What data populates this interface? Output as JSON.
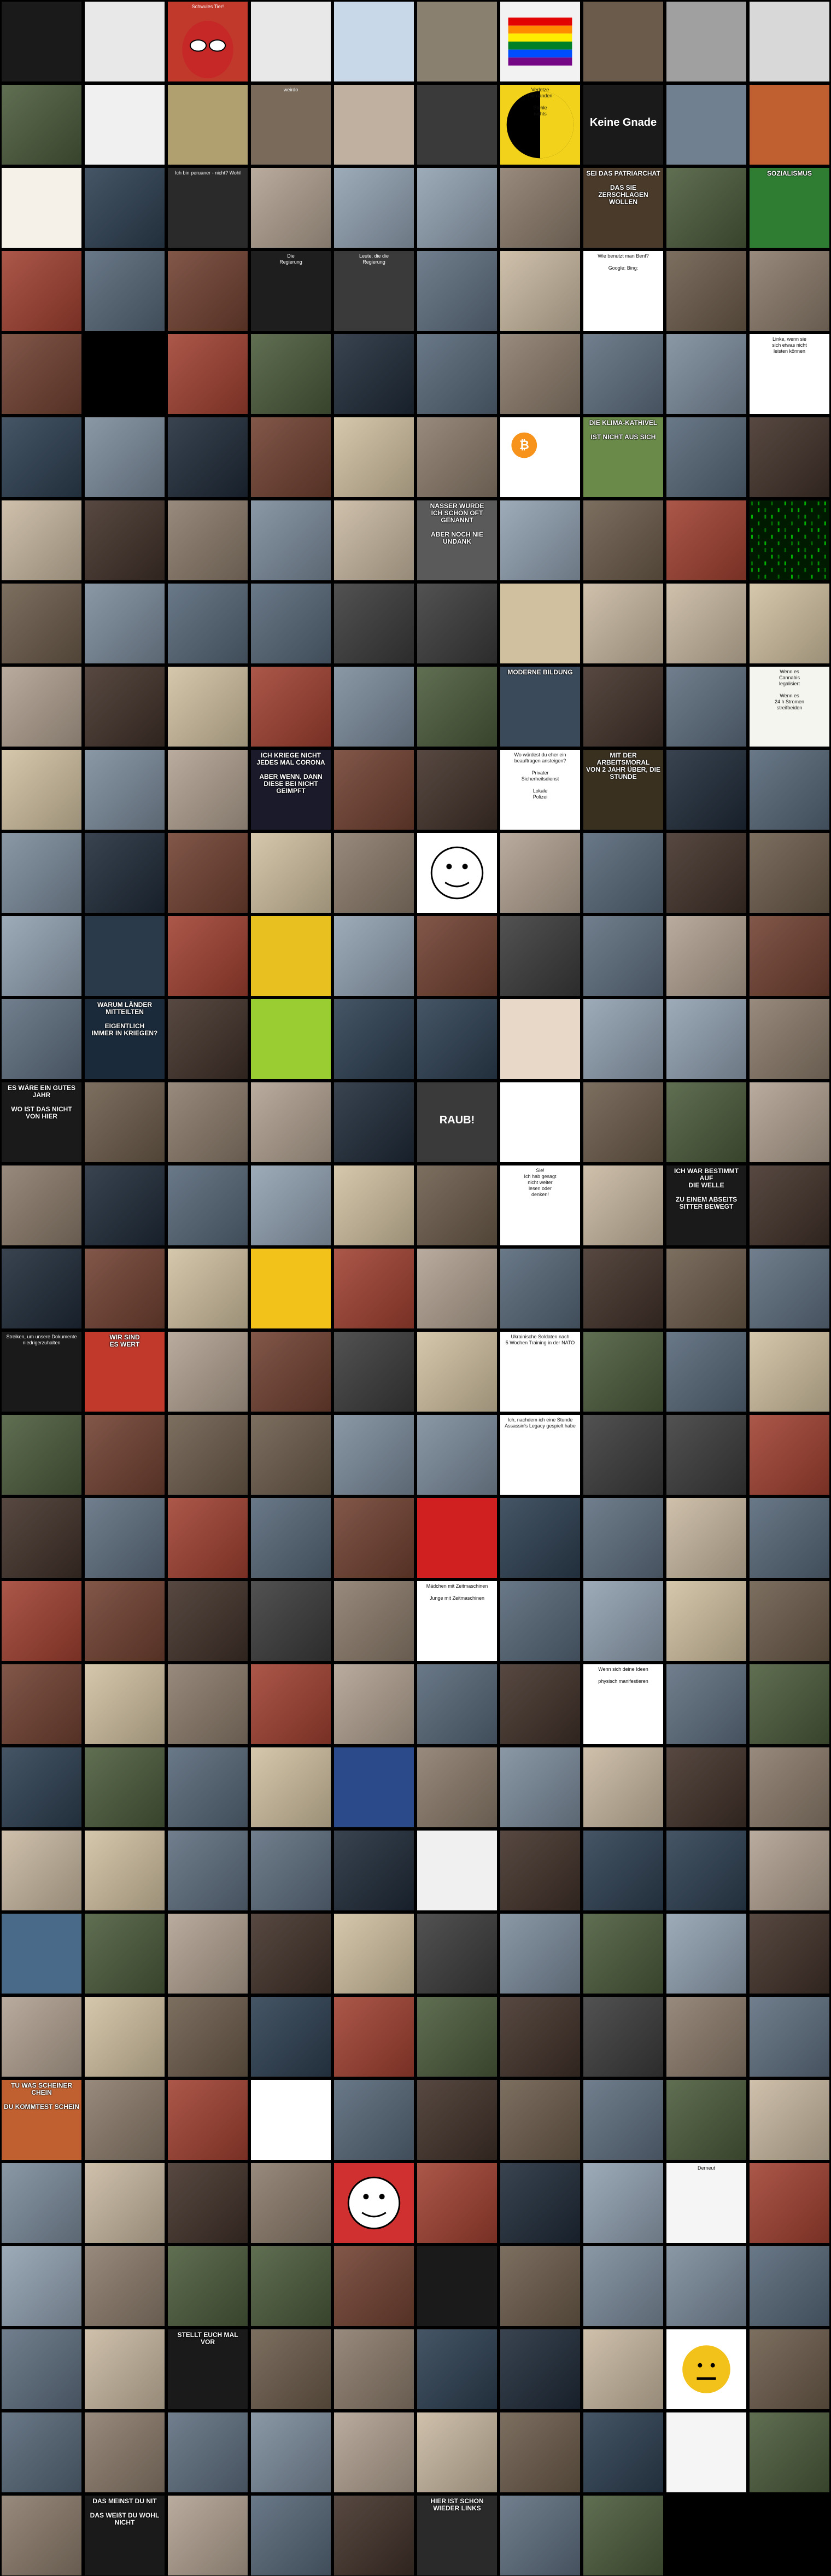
{
  "palette": [
    "#3a3a3a",
    "#6b5b4a",
    "#8a7a6a",
    "#2c3e50",
    "#5d6d7e",
    "#a04030",
    "#7a8a9a",
    "#4a5a3a",
    "#b0a090",
    "#1e2a38",
    "#c8b8a0",
    "#556677",
    "#704030",
    "#90a0b0",
    "#403028",
    "#d0c0a0"
  ],
  "accents": {
    "flag": "#e21b1b",
    "rainbow": [
      "#e40303",
      "#ff8c00",
      "#ffed00",
      "#008026",
      "#004dff",
      "#750787"
    ],
    "yellow": "#f2d21b",
    "bitcoin": "#f7931a",
    "matrix": "#00c000",
    "pink": "#ff2a8a"
  },
  "tiles": [
    {
      "id": "r0c0",
      "text": "",
      "bg": "#1a1a1a",
      "dark": true
    },
    {
      "id": "r0c1",
      "text": "",
      "bg": "#e8e8e8",
      "dark": false
    },
    {
      "id": "r0c2",
      "text": "Schwules Tier!",
      "bg": "#c0392b",
      "dark": true,
      "icon": "spiderman"
    },
    {
      "id": "r0c3",
      "text": "",
      "bg": "#e8e8e8",
      "dark": false
    },
    {
      "id": "r0c4",
      "text": "",
      "bg": "#c8d8e8",
      "dark": false
    },
    {
      "id": "r0c5",
      "text": "",
      "bg": "#8a8070",
      "dark": true
    },
    {
      "id": "r0c6",
      "text": "",
      "bg": "#f2f2f2",
      "dark": false,
      "icon": "rainbow-flag"
    },
    {
      "id": "r0c7",
      "text": "",
      "bg": "#6b5b4a",
      "dark": true
    },
    {
      "id": "r0c8",
      "text": "",
      "bg": "#a0a0a0",
      "dark": true
    },
    {
      "id": "r0c9",
      "text": "",
      "bg": "#d8d8d8",
      "dark": false
    },
    {
      "id": "r1c1",
      "text": "",
      "bg": "#f0f0f0",
      "dark": false
    },
    {
      "id": "r1c2",
      "text": "",
      "bg": "#b0a070",
      "dark": true
    },
    {
      "id": "r1c3",
      "text": "weirdo",
      "bg": "#7a6a5a",
      "dark": true
    },
    {
      "id": "r1c4",
      "text": "",
      "bg": "#c0b0a0",
      "dark": true
    },
    {
      "id": "r1c5",
      "text": "",
      "bg": "#3a3a3a",
      "dark": true
    },
    {
      "id": "r1c6",
      "text": "Verletze\nniemanden\n\nStehle\nnichts",
      "bg": "#f2d21b",
      "dark": false,
      "icon": "yinyang"
    },
    {
      "id": "r1c7",
      "text": "Keine Gnade",
      "bg": "#1a1a1a",
      "dark": true,
      "big": true
    },
    {
      "id": "r1c8",
      "text": "",
      "bg": "#708090",
      "dark": true
    },
    {
      "id": "r1c9",
      "text": "",
      "bg": "#c06030",
      "dark": true
    },
    {
      "id": "r2c0",
      "text": "",
      "bg": "#f5f0e8",
      "dark": false
    },
    {
      "id": "r2c2",
      "text": "Ich bin peruaner - nicht? Wohl",
      "bg": "#2a2a2a",
      "dark": true
    },
    {
      "id": "r2c7",
      "text": "SEI DAS PATRIARCHAT\n\nDAS SIE\nZERSCHLAGEN WOLLEN",
      "bg": "#4a3a2a",
      "dark": true,
      "meme": true
    },
    {
      "id": "r2c9",
      "text": "SOZIALISMUS",
      "bg": "#2e7d32",
      "dark": true,
      "meme": true
    },
    {
      "id": "r3c3",
      "text": "Die\nRegierung",
      "bg": "#1e1e1e",
      "dark": true
    },
    {
      "id": "r3c4",
      "text": "Leute, die die\nRegierung",
      "bg": "#3a3a3a",
      "dark": true
    },
    {
      "id": "r3c7",
      "text": "Wie benutzt man Benf?\n\nGoogle:      Bing:",
      "bg": "#ffffff",
      "dark": false
    },
    {
      "id": "r4c1",
      "text": "",
      "bg": "#000000",
      "dark": true
    },
    {
      "id": "r4c9",
      "text": "Linke, wenn sie\nsich etwas nicht\nleisten können",
      "bg": "#ffffff",
      "dark": false
    },
    {
      "id": "r5c6",
      "text": "",
      "bg": "#ffffff",
      "dark": false,
      "icon": "bitcoin"
    },
    {
      "id": "r5c7",
      "text": "DIE KLIMA-KATHIVEL\n\nIST NICHT AUS SICH",
      "bg": "#6a8a4a",
      "dark": true,
      "meme": true
    },
    {
      "id": "r6c5",
      "text": "NASSER WURDE\nICH SCHON OFT GENANNT\n\nABER NOCH NIE UNDANK",
      "bg": "#5a5a5a",
      "dark": true,
      "meme": true
    },
    {
      "id": "r6c9",
      "text": "",
      "bg": "#001a00",
      "dark": true,
      "icon": "matrix"
    },
    {
      "id": "r7c6",
      "text": "",
      "bg": "#d0c0a0",
      "dark": false
    },
    {
      "id": "r8c6",
      "text": "MODERNE BILDUNG",
      "bg": "#3a4a5a",
      "dark": true,
      "meme": true
    },
    {
      "id": "r8c9",
      "text": "Wenn es\nCannabis\nlegalisiert\n\nWenn es\n24 h Stromen\nstreifbeiden",
      "bg": "#f5f5f0",
      "dark": false
    },
    {
      "id": "r9c3",
      "text": "ICH KRIEGE NICHT\nJEDES MAL CORONA\n\nABER WENN, DANN\nDIESE BEI NICHT GEIMPFT",
      "bg": "#1a1a2a",
      "dark": true,
      "meme": true
    },
    {
      "id": "r9c6",
      "text": "Wo würdest du eher ein\nbeauftragen ansteigen?\n\nPrivater\nSicherheitsdienst\n\nLokale\nPolizei",
      "bg": "#ffffff",
      "dark": false
    },
    {
      "id": "r9c7",
      "text": "MIT DER ARBEITSMORAL\nVON 2 JAHR ÜBER, DIE STUNDE",
      "bg": "#3a3020",
      "dark": true,
      "meme": true
    },
    {
      "id": "r10c5",
      "text": "",
      "bg": "#ffffff",
      "dark": false,
      "icon": "rage-face"
    },
    {
      "id": "r11c1",
      "text": "",
      "bg": "#2a3a4a",
      "dark": true
    },
    {
      "id": "r11c3",
      "text": "",
      "bg": "#e8c020",
      "dark": false
    },
    {
      "id": "r12c1",
      "text": "WARUM LÄNDER MITTEILTEN\n\nEIGENTLICH\nIMMER IN KRIEGEN?",
      "bg": "#1a2a3a",
      "dark": true,
      "meme": true
    },
    {
      "id": "r12c3",
      "text": "",
      "bg": "#9acd32",
      "dark": false
    },
    {
      "id": "r12c6",
      "text": "",
      "bg": "#e8d8c8",
      "dark": false
    },
    {
      "id": "r13c0",
      "text": "ES WÄRE EIN GUTES JAHR\n\nWO IST DAS NICHT\nVON HIER",
      "bg": "#1a1a1a",
      "dark": true,
      "meme": true
    },
    {
      "id": "r13c5",
      "text": "RAUB!",
      "bg": "#3a3a3a",
      "dark": true,
      "big": true
    },
    {
      "id": "r13c6",
      "text": "",
      "bg": "#ffffff",
      "dark": false
    },
    {
      "id": "r14c6",
      "text": "Sie!\nIch hab gesagt\nnicht weiter\nlesen oder\ndenken!",
      "bg": "#ffffff",
      "dark": false
    },
    {
      "id": "r14c8",
      "text": "ICH WAR BESTIMMT AUF\nDIE WELLE\n\nZU EINEM ABSEITS\nSITTER BEWEGT",
      "bg": "#1a1a1a",
      "dark": true,
      "meme": true
    },
    {
      "id": "r15c3",
      "text": "",
      "bg": "#f2c21b",
      "dark": false
    },
    {
      "id": "r16c0",
      "text": "Streiken, um unsere Dokumente\nniedrigerzuhalten",
      "bg": "#1a1a1a",
      "dark": true
    },
    {
      "id": "r16c1",
      "text": "WIR SIND\nES WERT",
      "bg": "#c0392b",
      "dark": true,
      "meme": true
    },
    {
      "id": "r16c6",
      "text": "Ukrainische Soldaten nach\n5 Wochen Training in der NATO",
      "bg": "#ffffff",
      "dark": false
    },
    {
      "id": "r17c6",
      "text": "Ich, nachdem ich eine Stunde\nAssassin's Legacy gespielt habe",
      "bg": "#ffffff",
      "dark": false
    },
    {
      "id": "r18c5",
      "text": "",
      "bg": "#d02020",
      "dark": true
    },
    {
      "id": "r19c5",
      "text": "Mädchen mit Zeitmaschinen\n\nJunge mit Zeitmaschinen",
      "bg": "#ffffff",
      "dark": false
    },
    {
      "id": "r20c7",
      "text": "Wenn sich deine Ideen\n\nphysisch manifestieren",
      "bg": "#ffffff",
      "dark": false
    },
    {
      "id": "r21c4",
      "text": "",
      "bg": "#2a4a8a",
      "dark": true
    },
    {
      "id": "r22c5",
      "text": "",
      "bg": "#f0f0f0",
      "dark": false
    },
    {
      "id": "r23c0",
      "text": "",
      "bg": "#4a6a8a",
      "dark": true
    },
    {
      "id": "r25c0",
      "text": "TU WAS SCHEINER CHEIN\n\nDU KOMMTEST SCHEIN",
      "bg": "#c06030",
      "dark": true,
      "meme": true
    },
    {
      "id": "r25c3",
      "text": "",
      "bg": "#ffffff",
      "dark": false
    },
    {
      "id": "r26c4",
      "text": "",
      "bg": "#d03030",
      "dark": true,
      "icon": "rage-face"
    },
    {
      "id": "r26c8",
      "text": "Derneut",
      "bg": "#f5f5f5",
      "dark": false
    },
    {
      "id": "r27c5",
      "text": "",
      "bg": "#1a1a1a",
      "dark": true
    },
    {
      "id": "r28c2",
      "text": "STELLT EUCH MAL VOR",
      "bg": "#1a1a1a",
      "dark": true,
      "meme": true
    },
    {
      "id": "r28c8",
      "text": "",
      "bg": "#ffffff",
      "dark": false,
      "icon": "emoji"
    },
    {
      "id": "r29c8",
      "text": "",
      "bg": "#f5f5f5",
      "dark": false
    },
    {
      "id": "r30c1",
      "text": "DAS MEINST DU NIT\n\nDAS WEIßT DU WOHL NICHT",
      "bg": "#1a1a1a",
      "dark": true,
      "meme": true
    },
    {
      "id": "r30c5",
      "text": "HIER IST SCHON WIEDER LINKS",
      "bg": "#2a2a2a",
      "dark": true,
      "meme": true
    }
  ]
}
